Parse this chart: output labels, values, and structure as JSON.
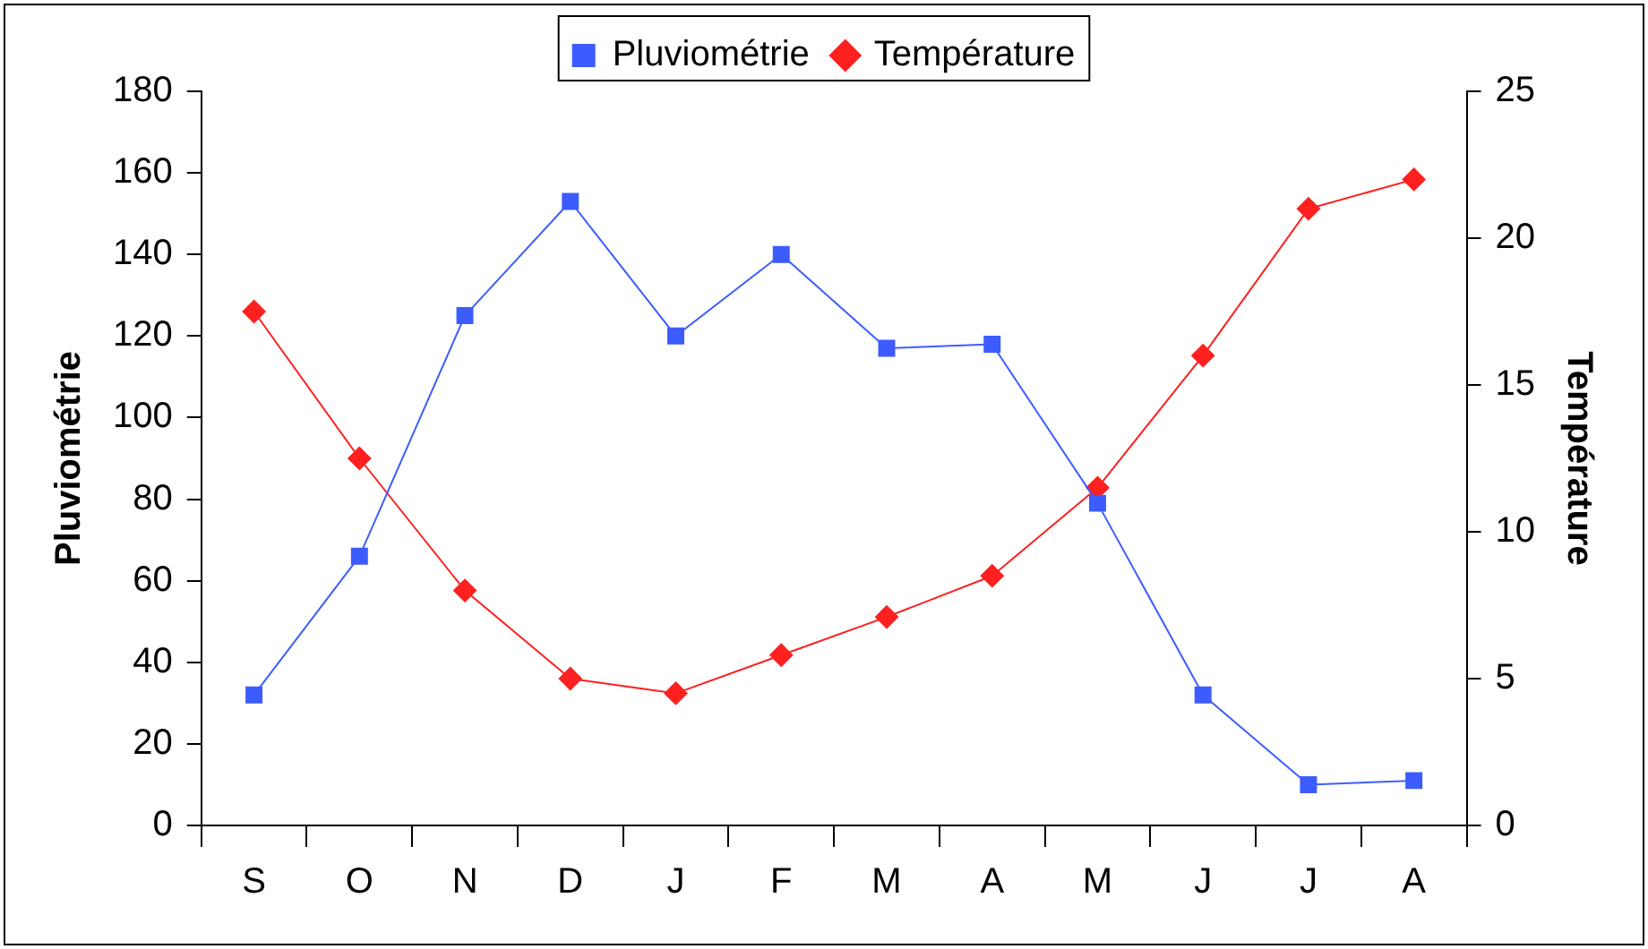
{
  "chart_data": {
    "type": "line",
    "categories": [
      "S",
      "O",
      "N",
      "D",
      "J",
      "F",
      "M",
      "A",
      "M",
      "J",
      "J",
      "A"
    ],
    "series": [
      {
        "name": "Pluviométrie",
        "color": "#3d5cff",
        "marker": "square",
        "values": [
          32,
          66,
          125,
          153,
          120,
          140,
          117,
          118,
          79,
          32,
          10,
          11
        ]
      },
      {
        "name": "Température",
        "color": "#ff2020",
        "marker": "diamond",
        "axis": "y2",
        "values": [
          17.5,
          12.5,
          8,
          5,
          4.5,
          5.8,
          7.1,
          8.5,
          11.5,
          16,
          21,
          22
        ]
      }
    ],
    "ylabel": "Pluviométrie",
    "y2label": "Température",
    "ylim": [
      0,
      180
    ],
    "yticks": [
      0,
      20,
      40,
      60,
      80,
      100,
      120,
      140,
      160,
      180
    ],
    "y2lim": [
      0,
      25
    ],
    "y2ticks": [
      0,
      5,
      10,
      15,
      20,
      25
    ],
    "grid": false,
    "legend": "top"
  }
}
